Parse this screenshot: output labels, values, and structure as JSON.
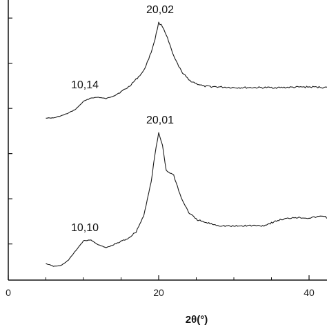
{
  "chart_data": {
    "type": "line",
    "xlabel": "2θ(°)",
    "ylabel": "",
    "xlim": [
      0,
      43
    ],
    "x_ticks": [
      0,
      20,
      40
    ],
    "x_tick_labels": [
      "0",
      "20",
      "40"
    ],
    "y_axis_tick_count": 7,
    "grid": false,
    "legend": "none",
    "series": [
      {
        "points": [
          [
            5,
            171
          ],
          [
            6,
            171
          ],
          [
            7,
            168
          ],
          [
            8,
            164
          ],
          [
            9,
            158
          ],
          [
            10,
            147
          ],
          [
            11,
            142
          ],
          [
            12,
            141
          ],
          [
            13,
            143
          ],
          [
            14,
            139
          ],
          [
            15,
            133
          ],
          [
            16,
            126
          ],
          [
            17,
            115
          ],
          [
            18,
            103
          ],
          [
            19,
            76
          ],
          [
            19.5,
            57
          ],
          [
            20,
            33
          ],
          [
            20.5,
            38
          ],
          [
            21,
            50
          ],
          [
            22,
            82
          ],
          [
            23,
            103
          ],
          [
            24,
            116
          ],
          [
            25,
            121
          ],
          [
            26,
            125
          ],
          [
            28,
            126
          ],
          [
            30,
            127
          ],
          [
            33,
            127
          ],
          [
            36,
            127
          ],
          [
            40,
            126
          ],
          [
            43,
            127
          ]
        ],
        "annotations": [
          {
            "text": "10,14",
            "x": 10,
            "y": 142
          },
          {
            "text": "20,02",
            "x": 20,
            "y": 33
          }
        ]
      },
      {
        "points": [
          [
            5,
            382
          ],
          [
            6,
            386
          ],
          [
            7,
            385
          ],
          [
            8,
            377
          ],
          [
            9,
            363
          ],
          [
            10,
            349
          ],
          [
            11,
            348
          ],
          [
            12,
            355
          ],
          [
            13,
            359
          ],
          [
            14,
            355
          ],
          [
            15,
            350
          ],
          [
            16,
            345
          ],
          [
            17,
            336
          ],
          [
            18,
            313
          ],
          [
            19,
            264
          ],
          [
            19.5,
            224
          ],
          [
            20,
            193
          ],
          [
            20.5,
            210
          ],
          [
            21,
            247
          ],
          [
            22,
            254
          ],
          [
            23,
            287
          ],
          [
            24,
            308
          ],
          [
            25,
            318
          ],
          [
            26,
            322
          ],
          [
            28,
            327
          ],
          [
            30,
            328
          ],
          [
            32,
            327
          ],
          [
            34,
            327
          ],
          [
            36,
            319
          ],
          [
            38,
            315
          ],
          [
            40,
            316
          ],
          [
            42,
            313
          ],
          [
            43,
            320
          ]
        ],
        "annotations": [
          {
            "text": "10,10",
            "x": 10,
            "y": 349
          },
          {
            "text": "20,01",
            "x": 20,
            "y": 193
          }
        ]
      }
    ]
  }
}
